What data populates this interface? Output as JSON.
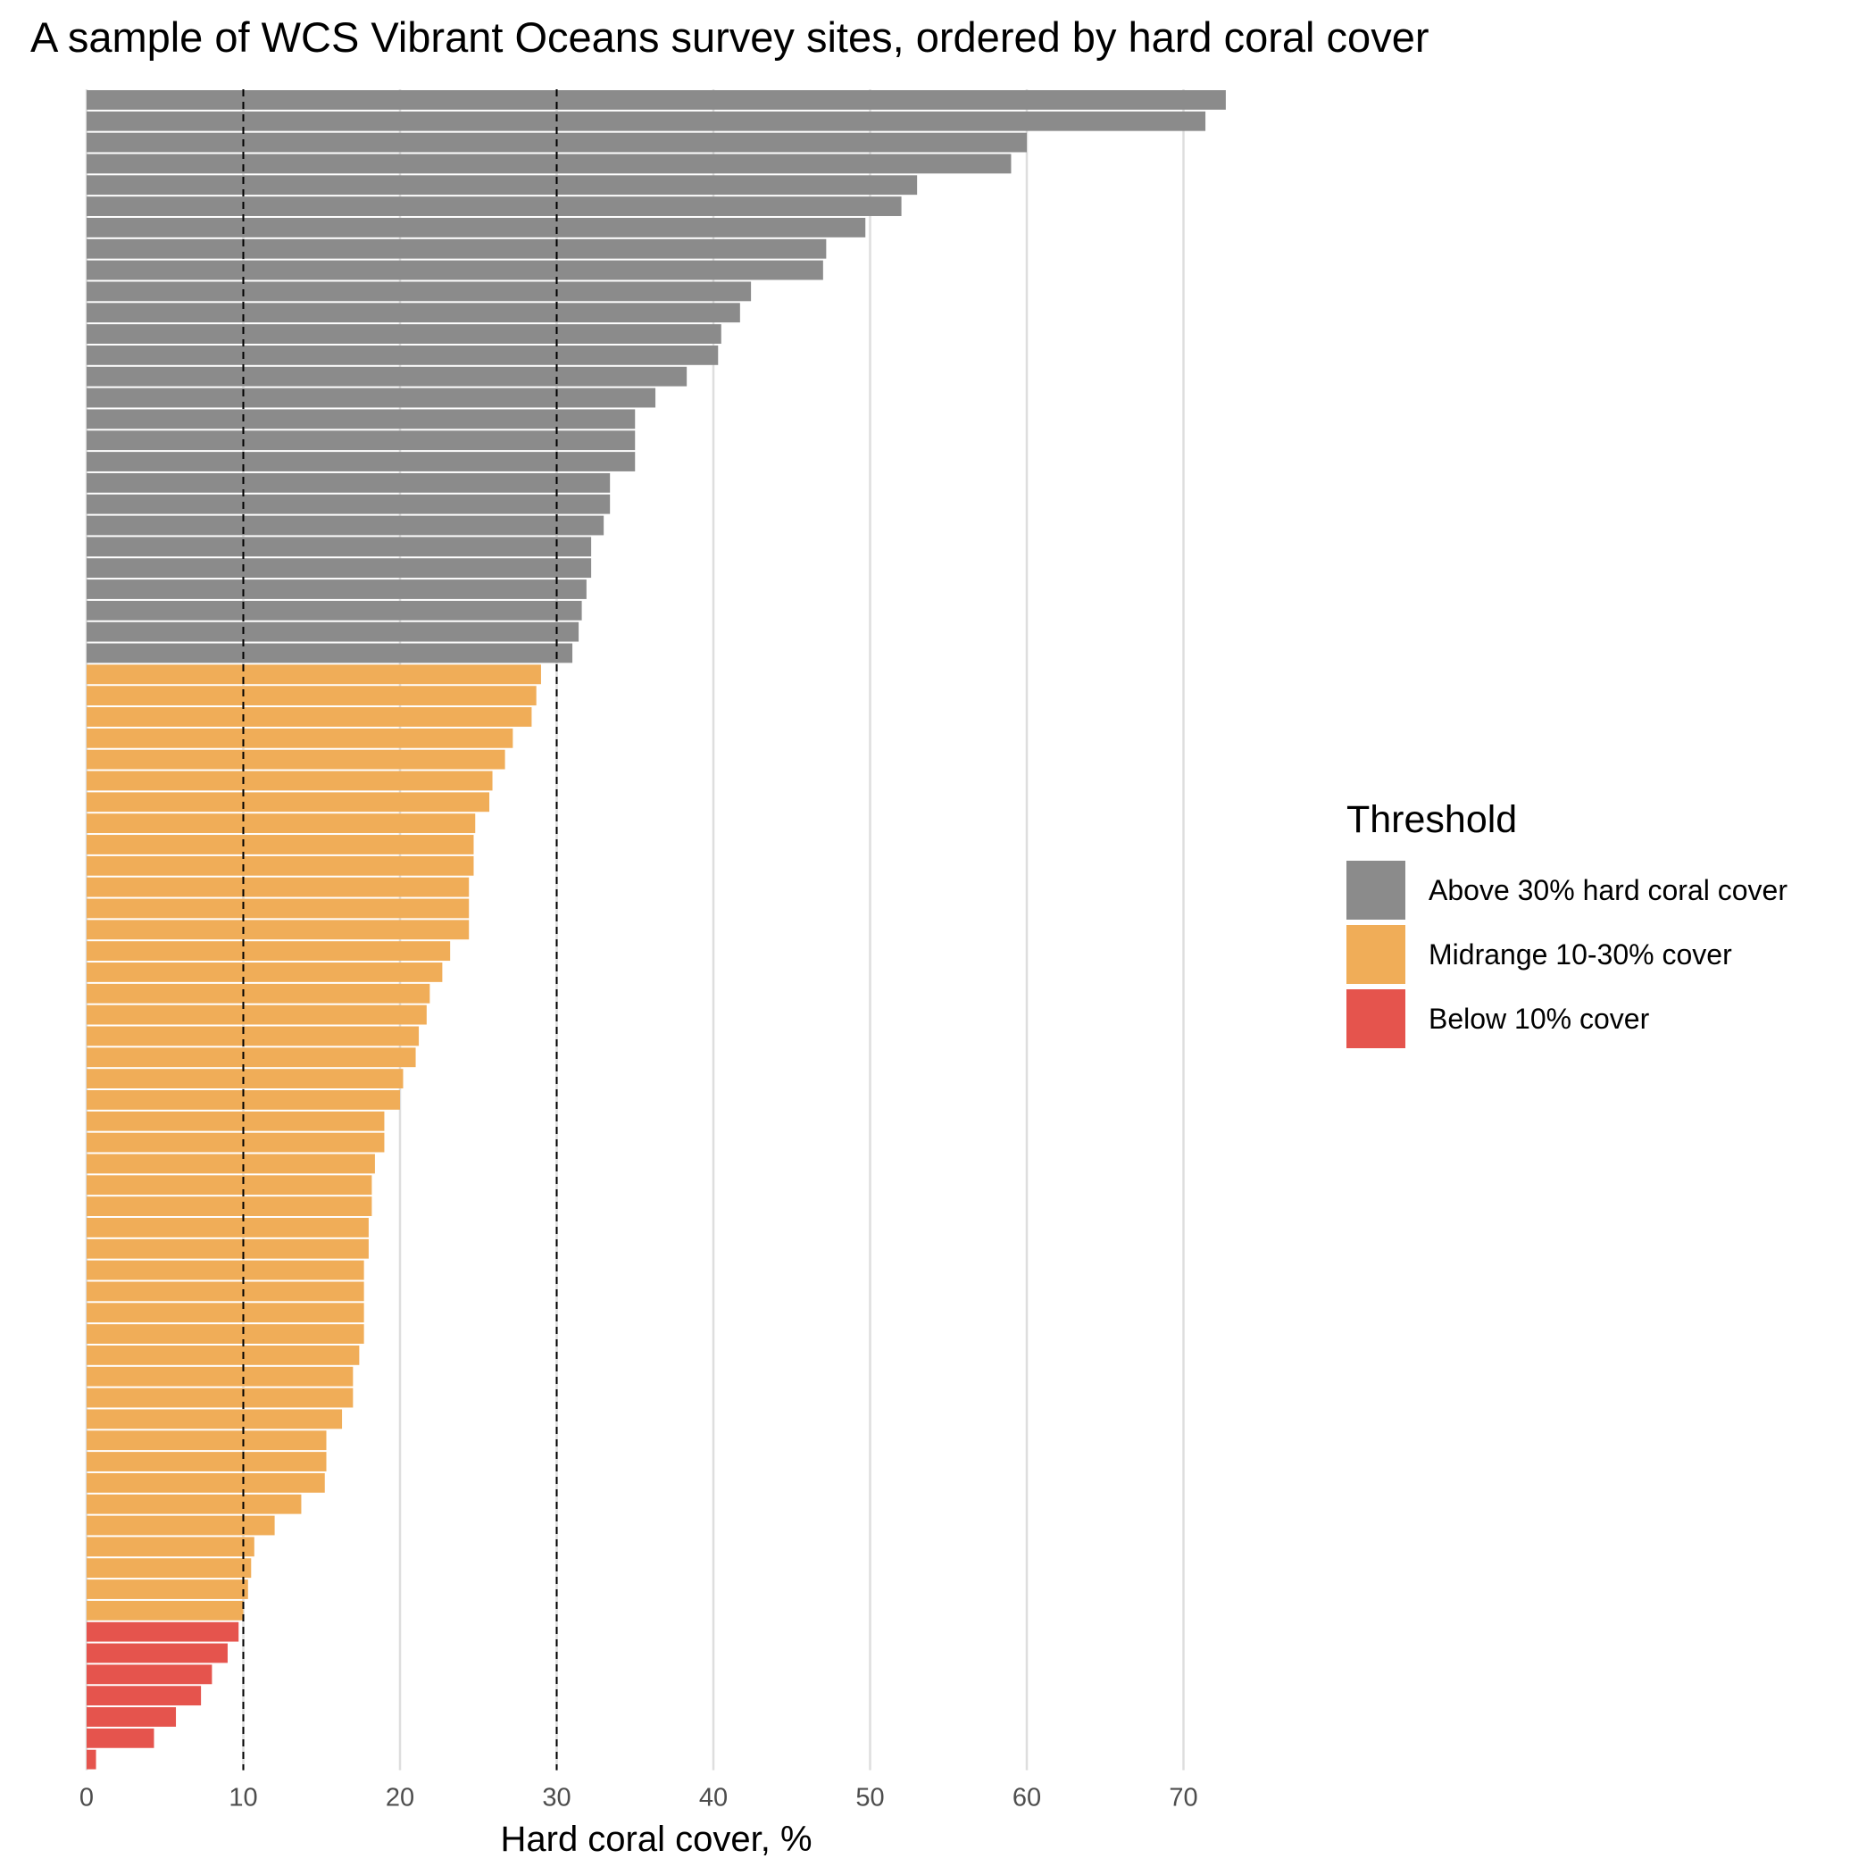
{
  "chart_data": {
    "type": "bar",
    "orientation": "horizontal",
    "title": "A sample of WCS Vibrant Oceans survey sites, ordered by hard coral cover",
    "xlabel": "Hard coral cover, %",
    "ylabel": "",
    "xlim": [
      0,
      75
    ],
    "xticks": [
      0,
      10,
      20,
      30,
      40,
      50,
      60,
      70
    ],
    "reference_lines": [
      10,
      30
    ],
    "grid": "vertical major gridlines",
    "legend": {
      "title": "Threshold",
      "position": "right",
      "entries": [
        {
          "key": "above",
          "label": "Above 30% hard coral cover",
          "color": "#8b8b8b"
        },
        {
          "key": "mid",
          "label": "Midrange 10-30% cover",
          "color": "#f0ad58"
        },
        {
          "key": "below",
          "label": "Below 10% cover",
          "color": "#e5544d"
        }
      ]
    },
    "values": [
      72.7,
      71.4,
      60.0,
      59.0,
      53.0,
      52.0,
      49.7,
      47.2,
      47.0,
      42.4,
      41.7,
      40.5,
      40.3,
      38.3,
      36.3,
      35.0,
      35.0,
      35.0,
      33.4,
      33.4,
      33.0,
      32.2,
      32.2,
      31.9,
      31.6,
      31.4,
      31.0,
      29.0,
      28.7,
      28.4,
      27.2,
      26.7,
      25.9,
      25.7,
      24.8,
      24.7,
      24.7,
      24.4,
      24.4,
      24.4,
      23.2,
      22.7,
      21.9,
      21.7,
      21.2,
      21.0,
      20.2,
      20.0,
      19.0,
      19.0,
      18.4,
      18.2,
      18.2,
      18.0,
      18.0,
      17.7,
      17.7,
      17.7,
      17.7,
      17.4,
      17.0,
      17.0,
      16.3,
      15.3,
      15.3,
      15.2,
      13.7,
      12.0,
      10.7,
      10.5,
      10.3,
      10.0,
      9.7,
      9.0,
      8.0,
      7.3,
      5.7,
      4.3,
      0.6
    ]
  }
}
